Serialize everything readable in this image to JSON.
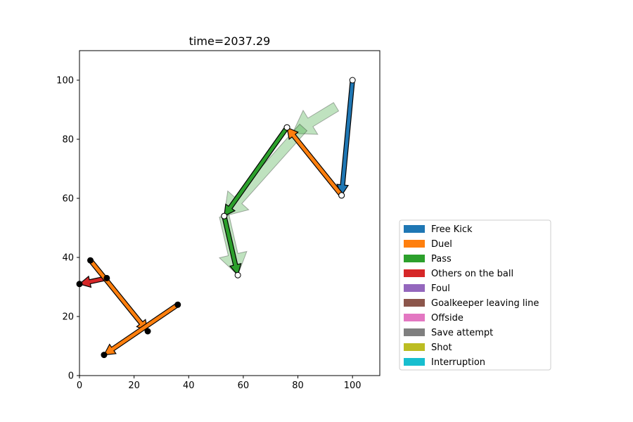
{
  "chart_data": {
    "type": "scatter",
    "title": "time=2037.29",
    "xlabel": "",
    "ylabel": "",
    "xlim": [
      0,
      110
    ],
    "ylim": [
      0,
      110
    ],
    "xticks": [
      0,
      20,
      40,
      60,
      80,
      100
    ],
    "yticks": [
      0,
      20,
      40,
      60,
      80,
      100
    ],
    "grid": false,
    "legend_position": "lower-right outside",
    "legend": [
      {
        "label": "Free Kick",
        "color": "#1f77b4"
      },
      {
        "label": "Duel",
        "color": "#ff7f0e"
      },
      {
        "label": "Pass",
        "color": "#2ca02c"
      },
      {
        "label": "Others on the ball",
        "color": "#d62728"
      },
      {
        "label": "Foul",
        "color": "#9467bd"
      },
      {
        "label": "Goalkeeper leaving line",
        "color": "#8c564b"
      },
      {
        "label": "Offside",
        "color": "#e377c2"
      },
      {
        "label": "Save attempt",
        "color": "#7f7f7f"
      },
      {
        "label": "Shot",
        "color": "#bcbd22"
      },
      {
        "label": "Interruption",
        "color": "#17becf"
      }
    ],
    "ghost_arrows": [
      {
        "type": "Pass",
        "x0": 94,
        "y0": 91,
        "x1": 78,
        "y1": 82
      },
      {
        "type": "Pass",
        "x0": 82,
        "y0": 84,
        "x1": 53,
        "y1": 54
      },
      {
        "type": "Pass",
        "x0": 53,
        "y0": 54,
        "x1": 58,
        "y1": 34
      }
    ],
    "events": [
      {
        "type": "Free Kick",
        "x0": 100,
        "y0": 100,
        "x1": 96,
        "y1": 61,
        "marker": "hollow"
      },
      {
        "type": "Duel",
        "x0": 96,
        "y0": 61,
        "x1": 76,
        "y1": 84,
        "marker": "hollow"
      },
      {
        "type": "Pass",
        "x0": 76,
        "y0": 84,
        "x1": 53,
        "y1": 54,
        "marker": "hollow"
      },
      {
        "type": "Pass",
        "x0": 53,
        "y0": 54,
        "x1": 58,
        "y1": 34,
        "marker": "hollow"
      },
      {
        "type": "Others on the ball",
        "x0": 10,
        "y0": 33,
        "x1": 0,
        "y1": 31,
        "marker": "filled"
      },
      {
        "type": "Duel",
        "x0": 4,
        "y0": 39,
        "x1": 25,
        "y1": 15,
        "marker": "filled"
      },
      {
        "type": "Duel",
        "x0": 36,
        "y0": 24,
        "x1": 9,
        "y1": 7,
        "marker": "filled"
      }
    ]
  }
}
